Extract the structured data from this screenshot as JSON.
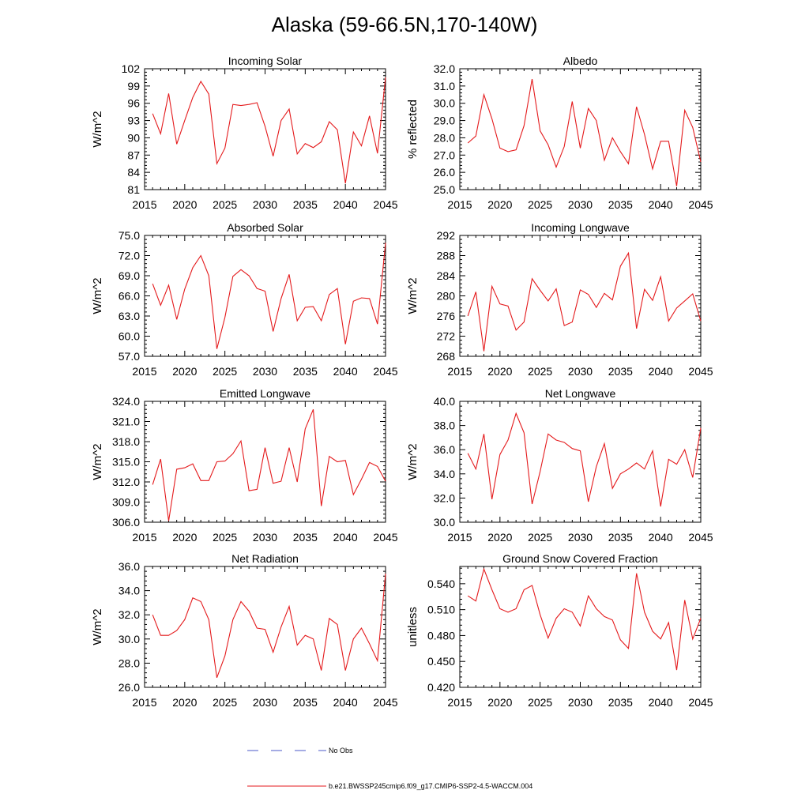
{
  "title": "Alaska (59-66.5N,170-140W)",
  "colors": {
    "series": "#e41a1c",
    "obs": "#4b59c8",
    "axis": "#000000"
  },
  "legend": {
    "obs_label": "No Obs",
    "model_label": "b.e21.BWSSP245cmip6.f09_g17.CMIP6-SSP2-4.5-WACCM.004"
  },
  "chart_data": [
    {
      "type": "line",
      "title": "Incoming Solar",
      "ylabel": "W/m^2",
      "xlim": [
        2015,
        2045
      ],
      "ylim": [
        81,
        102
      ],
      "xticks": [
        2015,
        2020,
        2025,
        2030,
        2035,
        2040,
        2045
      ],
      "yticks": [
        81,
        84,
        87,
        90,
        93,
        96,
        99,
        102
      ],
      "ytick_labels": [
        "81",
        "84",
        "87",
        "90",
        "93",
        "96",
        "99",
        "102"
      ],
      "x": [
        2016,
        2017,
        2018,
        2019,
        2020,
        2021,
        2022,
        2023,
        2024,
        2025,
        2026,
        2027,
        2028,
        2029,
        2030,
        2031,
        2032,
        2033,
        2034,
        2035,
        2036,
        2037,
        2038,
        2039,
        2040,
        2041,
        2042,
        2043,
        2044,
        2045
      ],
      "values": [
        94.2,
        90.7,
        97.7,
        88.9,
        93.0,
        97.0,
        99.8,
        97.6,
        85.5,
        88.2,
        95.8,
        95.6,
        95.8,
        96.1,
        92.0,
        86.8,
        93.0,
        95.0,
        87.2,
        89.0,
        88.3,
        89.3,
        92.8,
        91.4,
        82.1,
        91.0,
        88.6,
        93.8,
        87.3,
        100.5
      ]
    },
    {
      "type": "line",
      "title": "Albedo",
      "ylabel": "% reflected",
      "xlim": [
        2015,
        2045
      ],
      "ylim": [
        25.0,
        32.0
      ],
      "xticks": [
        2015,
        2020,
        2025,
        2030,
        2035,
        2040,
        2045
      ],
      "yticks": [
        25,
        26,
        27,
        28,
        29,
        30,
        31,
        32
      ],
      "ytick_labels": [
        "25.0",
        "26.0",
        "27.0",
        "28.0",
        "29.0",
        "30.0",
        "31.0",
        "32.0"
      ],
      "x": [
        2016,
        2017,
        2018,
        2019,
        2020,
        2021,
        2022,
        2023,
        2024,
        2025,
        2026,
        2027,
        2028,
        2029,
        2030,
        2031,
        2032,
        2033,
        2034,
        2035,
        2036,
        2037,
        2038,
        2039,
        2040,
        2041,
        2042,
        2043,
        2044,
        2045
      ],
      "values": [
        27.7,
        28.1,
        30.5,
        29.1,
        27.4,
        27.2,
        27.3,
        28.7,
        31.4,
        28.4,
        27.6,
        26.3,
        27.5,
        30.1,
        27.4,
        29.7,
        29.0,
        26.7,
        28.0,
        27.2,
        26.5,
        29.8,
        28.2,
        26.2,
        27.8,
        27.8,
        25.2,
        29.6,
        28.6,
        26.6
      ]
    },
    {
      "type": "line",
      "title": "Absorbed Solar",
      "ylabel": "W/m^2",
      "xlim": [
        2015,
        2045
      ],
      "ylim": [
        57.0,
        75.0
      ],
      "xticks": [
        2015,
        2020,
        2025,
        2030,
        2035,
        2040,
        2045
      ],
      "yticks": [
        57,
        60,
        63,
        66,
        69,
        72,
        75
      ],
      "ytick_labels": [
        "57.0",
        "60.0",
        "63.0",
        "66.0",
        "69.0",
        "72.0",
        "75.0"
      ],
      "x": [
        2016,
        2017,
        2018,
        2019,
        2020,
        2021,
        2022,
        2023,
        2024,
        2025,
        2026,
        2027,
        2028,
        2029,
        2030,
        2031,
        2032,
        2033,
        2034,
        2035,
        2036,
        2037,
        2038,
        2039,
        2040,
        2041,
        2042,
        2043,
        2044,
        2045
      ],
      "values": [
        67.8,
        64.6,
        67.6,
        62.5,
        67.0,
        70.2,
        72.0,
        69.0,
        58.1,
        62.8,
        68.9,
        69.9,
        69.0,
        67.1,
        66.7,
        60.7,
        65.6,
        69.2,
        62.3,
        64.3,
        64.4,
        62.3,
        66.2,
        67.1,
        58.8,
        65.2,
        65.7,
        65.6,
        61.8,
        73.9
      ]
    },
    {
      "type": "line",
      "title": "Incoming Longwave",
      "ylabel": "W/m^2",
      "xlim": [
        2015,
        2045
      ],
      "ylim": [
        268,
        292
      ],
      "xticks": [
        2015,
        2020,
        2025,
        2030,
        2035,
        2040,
        2045
      ],
      "yticks": [
        268,
        272,
        276,
        280,
        284,
        288,
        292
      ],
      "ytick_labels": [
        "268",
        "272",
        "276",
        "280",
        "284",
        "288",
        "292"
      ],
      "x": [
        2016,
        2017,
        2018,
        2019,
        2020,
        2021,
        2022,
        2023,
        2024,
        2025,
        2026,
        2027,
        2028,
        2029,
        2030,
        2031,
        2032,
        2033,
        2034,
        2035,
        2036,
        2037,
        2038,
        2039,
        2040,
        2041,
        2042,
        2043,
        2044,
        2045
      ],
      "values": [
        276.0,
        280.8,
        269.0,
        281.9,
        278.4,
        278.0,
        273.2,
        274.8,
        283.4,
        281.1,
        279.0,
        281.4,
        274.1,
        274.8,
        281.2,
        280.3,
        277.7,
        280.5,
        279.2,
        285.9,
        288.5,
        273.5,
        281.3,
        279.1,
        283.8,
        275.0,
        277.6,
        279.0,
        280.4,
        275.0
      ]
    },
    {
      "type": "line",
      "title": "Emitted Longwave",
      "ylabel": "W/m^2",
      "xlim": [
        2015,
        2045
      ],
      "ylim": [
        306.0,
        324.0
      ],
      "xticks": [
        2015,
        2020,
        2025,
        2030,
        2035,
        2040,
        2045
      ],
      "yticks": [
        306,
        309,
        312,
        315,
        318,
        321,
        324
      ],
      "ytick_labels": [
        "306.0",
        "309.0",
        "312.0",
        "315.0",
        "318.0",
        "321.0",
        "324.0"
      ],
      "x": [
        2016,
        2017,
        2018,
        2019,
        2020,
        2021,
        2022,
        2023,
        2024,
        2025,
        2026,
        2027,
        2028,
        2029,
        2030,
        2031,
        2032,
        2033,
        2034,
        2035,
        2036,
        2037,
        2038,
        2039,
        2040,
        2041,
        2042,
        2043,
        2044,
        2045
      ],
      "values": [
        311.6,
        315.4,
        306.2,
        313.9,
        314.1,
        314.7,
        312.2,
        312.2,
        315.0,
        315.1,
        316.2,
        318.1,
        310.7,
        310.9,
        317.1,
        311.8,
        312.1,
        317.1,
        312.0,
        319.9,
        322.8,
        308.4,
        315.8,
        315.0,
        315.2,
        310.1,
        312.4,
        314.9,
        314.3,
        312.1
      ]
    },
    {
      "type": "line",
      "title": "Net Longwave",
      "ylabel": "W/m^2",
      "xlim": [
        2015,
        2045
      ],
      "ylim": [
        30.0,
        40.0
      ],
      "xticks": [
        2015,
        2020,
        2025,
        2030,
        2035,
        2040,
        2045
      ],
      "yticks": [
        30,
        32,
        34,
        36,
        38,
        40
      ],
      "ytick_labels": [
        "30.0",
        "32.0",
        "34.0",
        "36.0",
        "38.0",
        "40.0"
      ],
      "x": [
        2016,
        2017,
        2018,
        2019,
        2020,
        2021,
        2022,
        2023,
        2024,
        2025,
        2026,
        2027,
        2028,
        2029,
        2030,
        2031,
        2032,
        2033,
        2034,
        2035,
        2036,
        2037,
        2038,
        2039,
        2040,
        2041,
        2042,
        2043,
        2044,
        2045
      ],
      "values": [
        35.7,
        34.4,
        37.3,
        31.9,
        35.6,
        36.8,
        39.0,
        37.4,
        31.5,
        34.2,
        37.3,
        36.8,
        36.6,
        36.1,
        35.9,
        31.7,
        34.6,
        36.5,
        32.8,
        34.0,
        34.4,
        34.9,
        34.4,
        35.9,
        31.3,
        35.2,
        34.8,
        36.0,
        33.7,
        37.8
      ]
    },
    {
      "type": "line",
      "title": "Net Radiation",
      "ylabel": "W/m^2",
      "xlim": [
        2015,
        2045
      ],
      "ylim": [
        26.0,
        36.0
      ],
      "xticks": [
        2015,
        2020,
        2025,
        2030,
        2035,
        2040,
        2045
      ],
      "yticks": [
        26,
        28,
        30,
        32,
        34,
        36
      ],
      "ytick_labels": [
        "26.0",
        "28.0",
        "30.0",
        "32.0",
        "34.0",
        "36.0"
      ],
      "x": [
        2016,
        2017,
        2018,
        2019,
        2020,
        2021,
        2022,
        2023,
        2024,
        2025,
        2026,
        2027,
        2028,
        2029,
        2030,
        2031,
        2032,
        2033,
        2034,
        2035,
        2036,
        2037,
        2038,
        2039,
        2040,
        2041,
        2042,
        2043,
        2044,
        2045
      ],
      "values": [
        32.0,
        30.3,
        30.3,
        30.7,
        31.6,
        33.4,
        33.1,
        31.6,
        26.8,
        28.6,
        31.6,
        33.1,
        32.3,
        30.9,
        30.8,
        28.9,
        31.0,
        32.7,
        29.5,
        30.3,
        30.0,
        27.4,
        31.7,
        31.2,
        27.4,
        30.0,
        30.9,
        29.6,
        28.2,
        35.4
      ]
    },
    {
      "type": "line",
      "title": "Ground Snow Covered Fraction",
      "ylabel": "unitless",
      "xlim": [
        2015,
        2045
      ],
      "ylim": [
        0.42,
        0.56
      ],
      "xticks": [
        2015,
        2020,
        2025,
        2030,
        2035,
        2040,
        2045
      ],
      "yticks": [
        0.42,
        0.45,
        0.48,
        0.51,
        0.54
      ],
      "ytick_labels": [
        "0.420",
        "0.450",
        "0.480",
        "0.510",
        "0.540"
      ],
      "x": [
        2016,
        2017,
        2018,
        2019,
        2020,
        2021,
        2022,
        2023,
        2024,
        2025,
        2026,
        2027,
        2028,
        2029,
        2030,
        2031,
        2032,
        2033,
        2034,
        2035,
        2036,
        2037,
        2038,
        2039,
        2040,
        2041,
        2042,
        2043,
        2044,
        2045
      ],
      "values": [
        0.526,
        0.52,
        0.557,
        0.533,
        0.511,
        0.507,
        0.511,
        0.533,
        0.538,
        0.504,
        0.477,
        0.5,
        0.511,
        0.507,
        0.491,
        0.526,
        0.511,
        0.502,
        0.498,
        0.475,
        0.465,
        0.552,
        0.507,
        0.485,
        0.476,
        0.495,
        0.44,
        0.521,
        0.476,
        0.5
      ]
    }
  ]
}
